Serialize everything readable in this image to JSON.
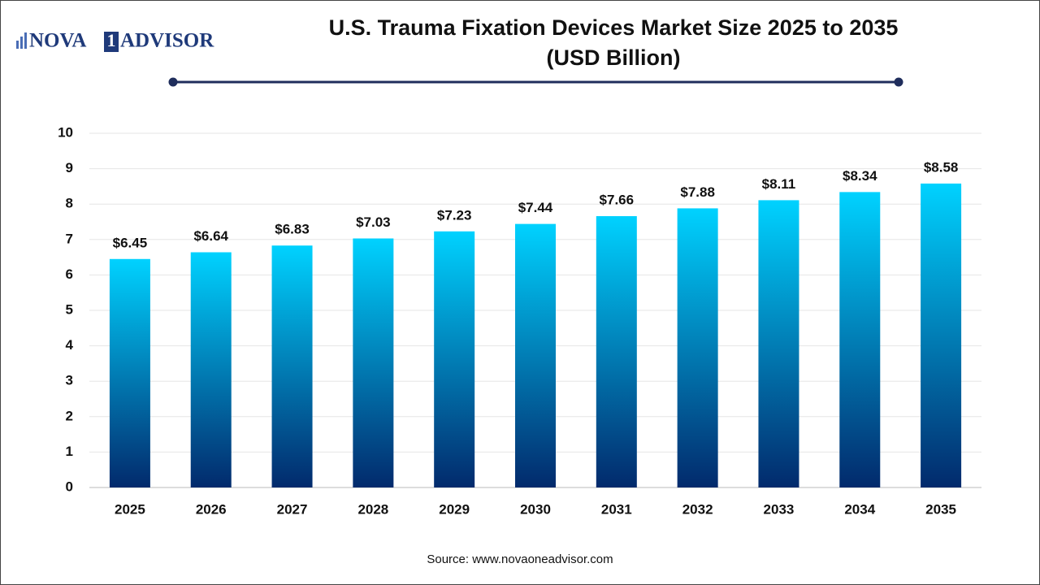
{
  "logo": {
    "left": "NOVA",
    "box": "1",
    "right": "ADVISOR"
  },
  "chart_data": {
    "type": "bar",
    "title": "U.S. Trauma Fixation Devices Market Size 2025 to 2035",
    "subtitle": "(USD Billion)",
    "categories": [
      "2025",
      "2026",
      "2027",
      "2028",
      "2029",
      "2030",
      "2031",
      "2032",
      "2033",
      "2034",
      "2035"
    ],
    "values": [
      6.45,
      6.64,
      6.83,
      7.03,
      7.23,
      7.44,
      7.66,
      7.88,
      8.11,
      8.34,
      8.58
    ],
    "value_labels": [
      "$6.45",
      "$6.64",
      "$6.83",
      "$7.03",
      "$7.23",
      "$7.44",
      "$7.66",
      "$7.88",
      "$8.11",
      "$8.34",
      "$8.58"
    ],
    "gradient": {
      "top": "#00d2ff",
      "bottom": "#022a6c"
    },
    "ylim": [
      0,
      10
    ],
    "yticks": [
      0,
      1,
      2,
      3,
      4,
      5,
      6,
      7,
      8,
      9,
      10
    ],
    "grid": true,
    "source": "Source: www.novaoneadvisor.com"
  }
}
